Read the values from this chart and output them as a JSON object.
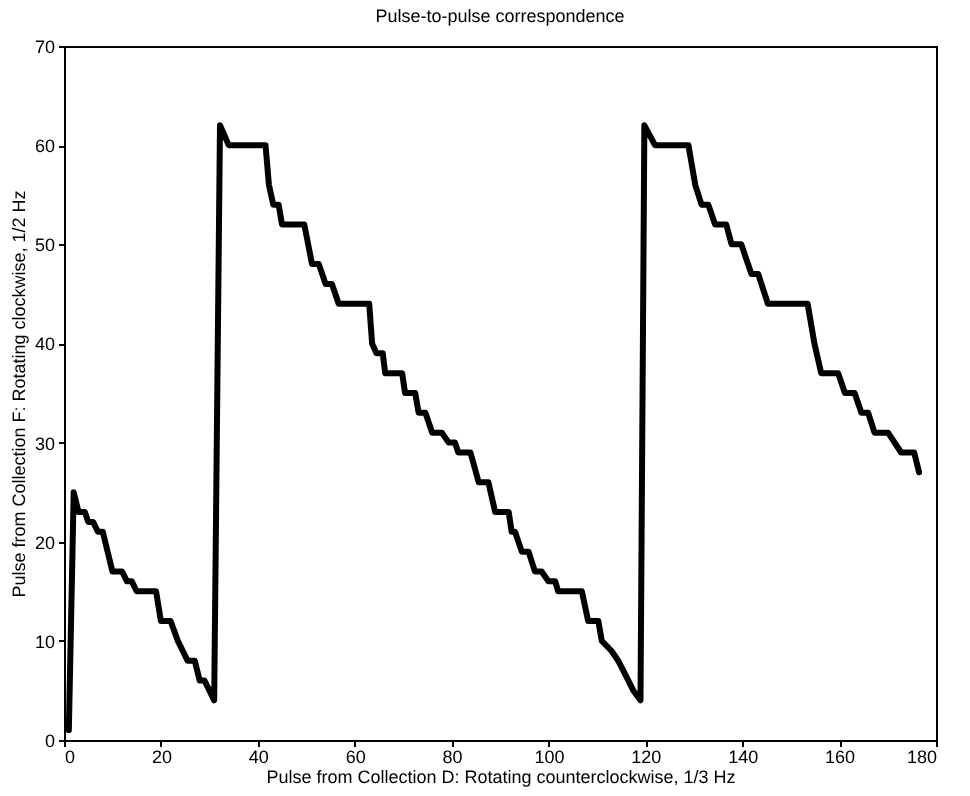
{
  "chart_data": {
    "type": "line",
    "title": "Pulse-to-pulse correspondence",
    "xlabel": "Pulse from Collection D: Rotating counterclockwise, 1/3 Hz",
    "ylabel": "Pulse from Collection F: Rotating clockwise, 1/2 Hz",
    "x": [
      1,
      2,
      3,
      4.3,
      5,
      6,
      7,
      8,
      9,
      10,
      12,
      13,
      14,
      15,
      19,
      20,
      22,
      23.5,
      24.5,
      25.5,
      27,
      28,
      29,
      30,
      31,
      32.2,
      34,
      41.6,
      42.3,
      43.2,
      44.3,
      45,
      49.6,
      51.2,
      52.6,
      54,
      55.3,
      56.7,
      63,
      63.6,
      64.5,
      65.8,
      66.3,
      69.8,
      70.4,
      72.5,
      73.2,
      74.6,
      76,
      78,
      79.4,
      80.7,
      81.4,
      83.9,
      85.6,
      87.6,
      89,
      91.8,
      92.4,
      93.1,
      94.5,
      95.9,
      97.2,
      98.6,
      100,
      101.4,
      102,
      106.9,
      108.2,
      110.3,
      111,
      113,
      114.4,
      116.5,
      117.5,
      119,
      119.8,
      122,
      128.9,
      130.3,
      131.6,
      133,
      134.4,
      136.7,
      137.8,
      139.8,
      141.9,
      143.3,
      145.3,
      153.5,
      154.9,
      156.3,
      159.8,
      161.2,
      163.2,
      164.6,
      166,
      167.3,
      170.1,
      172.8,
      175.5,
      176.5
    ],
    "series": [
      {
        "color": "#000000",
        "values": [
          1,
          25,
          23,
          23,
          22,
          22,
          21,
          21,
          19,
          17,
          17,
          16,
          16,
          15,
          15,
          12,
          12,
          10,
          9,
          8,
          8,
          6,
          6,
          5,
          4,
          62,
          60,
          60,
          56,
          54,
          54,
          52,
          52,
          48,
          48,
          46,
          46,
          44,
          44,
          40,
          39,
          39,
          37,
          37,
          35,
          35,
          33,
          33,
          31,
          31,
          30,
          30,
          29,
          29,
          26,
          26,
          23,
          23,
          21,
          21,
          19,
          19,
          17,
          17,
          16,
          16,
          15,
          15,
          12,
          12,
          10,
          9,
          8,
          6,
          5,
          4,
          62,
          60,
          60,
          56,
          54,
          54,
          52,
          52,
          50,
          50,
          47,
          47,
          44,
          44,
          40,
          37,
          37,
          35,
          35,
          33,
          33,
          31,
          31,
          29,
          29,
          27
        ]
      }
    ],
    "xlim": [
      0,
      180
    ],
    "xticks": [
      0,
      20,
      40,
      60,
      80,
      100,
      120,
      140,
      160,
      180
    ],
    "ylim": [
      0,
      70
    ],
    "yticks": [
      0,
      10,
      20,
      30,
      40,
      50,
      60,
      70
    ],
    "grid": false,
    "legend": false,
    "marker": "none",
    "line_style": "solid"
  }
}
